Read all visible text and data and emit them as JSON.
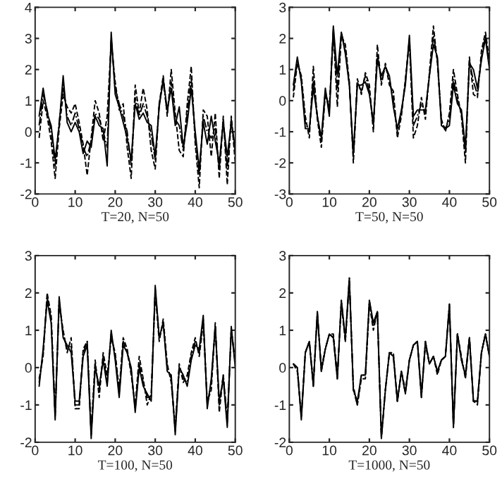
{
  "chart_data": [
    {
      "type": "line",
      "xlabel": "T=20, N=50",
      "x": [
        1,
        2,
        3,
        4,
        5,
        6,
        7,
        8,
        9,
        10,
        11,
        12,
        13,
        14,
        15,
        16,
        17,
        18,
        19,
        20,
        21,
        22,
        23,
        24,
        25,
        26,
        27,
        28,
        29,
        30,
        31,
        32,
        33,
        34,
        35,
        36,
        37,
        38,
        39,
        40,
        41,
        42,
        43,
        44,
        45,
        46,
        47,
        48,
        49,
        50
      ],
      "xlim": [
        0,
        50
      ],
      "xticks": [
        0,
        10,
        20,
        30,
        40,
        50
      ],
      "ylim": [
        -2,
        4
      ],
      "yticks": [
        -2,
        -1,
        0,
        1,
        2,
        3,
        4
      ],
      "series": [
        {
          "color": "#000000",
          "line_style": "solid",
          "values": [
            0.5,
            1.4,
            0.6,
            0.2,
            -0.9,
            0.2,
            1.8,
            0.3,
            0,
            0.3,
            0,
            -0.7,
            -0.3,
            -0.5,
            0.5,
            0.2,
            0.1,
            -1.1,
            3.2,
            1.2,
            0.8,
            0.3,
            -0.2,
            -0.9,
            0.9,
            0.4,
            0.6,
            0.3,
            0.2,
            -0.8,
            0.8,
            1.7,
            0.7,
            1.4,
            0.2,
            0.8,
            -0.5,
            0.3,
            1.4,
            0,
            -1.2,
            0.3,
            -0.4,
            0.5,
            -0.3,
            -1,
            0.3,
            -0.8,
            0.3,
            -0.5
          ]
        },
        {
          "color": "#000000",
          "line_style": "dashdot",
          "values": [
            0.2,
            1.2,
            0.7,
            0,
            -1.1,
            0.3,
            1.5,
            0.5,
            0.2,
            0.6,
            0.1,
            -0.5,
            -0.8,
            -0.3,
            0.6,
            0.4,
            0,
            -0.5,
            3.0,
            1.4,
            0.9,
            0.5,
            0,
            -1.1,
            1.1,
            0.5,
            0.9,
            0.5,
            -0.1,
            -0.9,
            0.9,
            1.6,
            0.6,
            1.6,
            0.4,
            0.2,
            -0.6,
            0.6,
            1.7,
            -0.2,
            -1.4,
            0.5,
            0,
            -0.2,
            0.1,
            -1.2,
            0.4,
            -1.2,
            0.4,
            -0.7
          ]
        },
        {
          "color": "#000000",
          "line_style": "dashed",
          "values": [
            -0.2,
            1.0,
            0.5,
            -0.3,
            -1.5,
            0.1,
            1.2,
            0.8,
            0.6,
            0.9,
            0.3,
            -0.4,
            -1.4,
            -0.2,
            1.0,
            0.6,
            -0.3,
            0.5,
            2.9,
            1.6,
            0.7,
            0.9,
            -0.5,
            -1.5,
            1.5,
            0.6,
            1.4,
            0.7,
            -0.6,
            -1.2,
            0.9,
            1.8,
            0.5,
            2.0,
            0.6,
            -0.6,
            -0.8,
            0.9,
            2.1,
            -0.4,
            -1.8,
            0.7,
            0.5,
            -0.8,
            0.6,
            -1.5,
            0.5,
            -1.7,
            0.5,
            -1.0
          ]
        }
      ]
    },
    {
      "type": "line",
      "xlabel": "T=50, N=50",
      "x": [
        1,
        2,
        3,
        4,
        5,
        6,
        7,
        8,
        9,
        10,
        11,
        12,
        13,
        14,
        15,
        16,
        17,
        18,
        19,
        20,
        21,
        22,
        23,
        24,
        25,
        26,
        27,
        28,
        29,
        30,
        31,
        32,
        33,
        34,
        35,
        36,
        37,
        38,
        39,
        40,
        41,
        42,
        43,
        44,
        45,
        46,
        47,
        48,
        49,
        50
      ],
      "xlim": [
        0,
        50
      ],
      "xticks": [
        0,
        10,
        20,
        30,
        40,
        50
      ],
      "ylim": [
        -3,
        3
      ],
      "yticks": [
        -3,
        -2,
        -1,
        0,
        1,
        2,
        3
      ],
      "series": [
        {
          "color": "#000000",
          "line_style": "solid",
          "values": [
            0.5,
            1.4,
            0.6,
            -0.9,
            -0.9,
            0.4,
            -0.5,
            -1.2,
            0.4,
            -0.5,
            2.4,
            0.8,
            2.2,
            1.5,
            0.5,
            -1.7,
            0.5,
            0.5,
            0.6,
            0.2,
            -0.7,
            1.3,
            0.8,
            1.1,
            0.8,
            -0.2,
            -0.9,
            -0.3,
            0.5,
            2.1,
            -0.5,
            -0.3,
            -0.3,
            -0.3,
            0.8,
            1.8,
            1.4,
            -0.8,
            -0.9,
            -0.8,
            0.5,
            -0.1,
            -0.3,
            -1.5,
            1.2,
            1.0,
            0.4,
            1.3,
            2.0,
            1.0
          ]
        },
        {
          "color": "#000000",
          "line_style": "dashdot",
          "values": [
            0.3,
            1.3,
            0.7,
            -0.7,
            -1.0,
            0.7,
            -0.5,
            -1.3,
            0.3,
            -0.3,
            2.3,
            0.3,
            2.2,
            1.6,
            0.5,
            -1.8,
            0.6,
            0.3,
            0.8,
            0.3,
            -0.8,
            1.5,
            0.6,
            1.1,
            0.7,
            0,
            -1.0,
            -0.4,
            0.6,
            2.0,
            -0.8,
            -0.5,
            -0.1,
            -0.4,
            0.8,
            2.1,
            1.3,
            -0.7,
            -0.9,
            -0.6,
            0.7,
            0,
            -0.4,
            -1.7,
            1.3,
            0.6,
            0.2,
            1.4,
            2.1,
            1.1
          ]
        },
        {
          "color": "#000000",
          "line_style": "dashed",
          "values": [
            0.1,
            1.2,
            0.8,
            -0.5,
            -1.2,
            1.1,
            -0.6,
            -1.5,
            0.2,
            -0.2,
            2.2,
            -0.2,
            2.1,
            1.8,
            0.6,
            -2.0,
            0.7,
            0.2,
            0.9,
            0.5,
            -1.0,
            1.8,
            0.5,
            1.2,
            0.5,
            0.3,
            -1.2,
            -0.5,
            0.7,
            1.9,
            -1.2,
            -0.8,
            0.1,
            -0.6,
            0.9,
            2.4,
            1.2,
            -0.6,
            -1.0,
            -0.4,
            1.0,
            0.2,
            -0.5,
            -2.0,
            1.4,
            0.2,
            0.1,
            1.6,
            2.2,
            1.3
          ]
        }
      ]
    },
    {
      "type": "line",
      "xlabel": "T=100, N=50",
      "x": [
        1,
        2,
        3,
        4,
        5,
        6,
        7,
        8,
        9,
        10,
        11,
        12,
        13,
        14,
        15,
        16,
        17,
        18,
        19,
        20,
        21,
        22,
        23,
        24,
        25,
        26,
        27,
        28,
        29,
        30,
        31,
        32,
        33,
        34,
        35,
        36,
        37,
        38,
        39,
        40,
        41,
        42,
        43,
        44,
        45,
        46,
        47,
        48,
        49,
        50
      ],
      "xlim": [
        0,
        50
      ],
      "xticks": [
        0,
        10,
        20,
        30,
        40,
        50
      ],
      "ylim": [
        -2,
        3
      ],
      "yticks": [
        -2,
        -1,
        0,
        1,
        2,
        3
      ],
      "series": [
        {
          "color": "#000000",
          "line_style": "solid",
          "values": [
            -0.5,
            0.5,
            1.8,
            1.2,
            -1.4,
            1.9,
            0.8,
            0.6,
            0.4,
            -0.9,
            -0.9,
            0.3,
            0.6,
            -1.9,
            0,
            -0.5,
            0.2,
            -0.5,
            1.0,
            0.2,
            -0.8,
            0.6,
            0.4,
            0,
            -1.2,
            0,
            -0.5,
            -0.7,
            -0.9,
            2.2,
            0.8,
            1.2,
            -0.1,
            -0.2,
            -1.8,
            0,
            -0.2,
            -0.5,
            0.2,
            0.6,
            0.5,
            1.4,
            -1.1,
            -0.3,
            1.1,
            -0.9,
            -0.3,
            -1.6,
            1.1,
            0
          ]
        },
        {
          "color": "#000000",
          "line_style": "dashdot",
          "values": [
            -0.4,
            0.4,
            1.9,
            1.3,
            -1.3,
            1.8,
            0.9,
            0.5,
            0.6,
            -1.0,
            -1.0,
            0.4,
            0.7,
            -1.8,
            0.1,
            -0.6,
            0.3,
            -0.4,
            0.9,
            0.3,
            -0.7,
            0.7,
            0.4,
            -0.1,
            -1.1,
            0.1,
            -0.4,
            -0.8,
            -0.8,
            2.1,
            0.8,
            1.2,
            0,
            -0.3,
            -1.7,
            0,
            -0.3,
            -0.4,
            0.3,
            0.7,
            0.4,
            1.3,
            -1.0,
            -0.4,
            1.1,
            -1.0,
            -0.2,
            -1.5,
            1.0,
            0.1
          ]
        },
        {
          "color": "#000000",
          "line_style": "dashed",
          "values": [
            -0.3,
            0.3,
            2.0,
            1.4,
            -1.2,
            1.7,
            1.0,
            0.4,
            0.8,
            -1.1,
            -1.1,
            0.5,
            0.7,
            -1.7,
            0.2,
            -0.8,
            0.4,
            -0.2,
            0.8,
            0.4,
            -0.6,
            0.8,
            0.5,
            -0.2,
            -1.0,
            0.3,
            -0.3,
            -1.0,
            -0.7,
            2.0,
            0.7,
            1.3,
            0.1,
            -0.4,
            -1.6,
            0.1,
            -0.4,
            -0.2,
            0.4,
            0.8,
            0.3,
            1.2,
            -0.9,
            -0.6,
            1.2,
            -1.2,
            -0.2,
            -1.4,
            1.0,
            0.2
          ]
        }
      ]
    },
    {
      "type": "line",
      "xlabel": "T=1000, N=50",
      "x": [
        1,
        2,
        3,
        4,
        5,
        6,
        7,
        8,
        9,
        10,
        11,
        12,
        13,
        14,
        15,
        16,
        17,
        18,
        19,
        20,
        21,
        22,
        23,
        24,
        25,
        26,
        27,
        28,
        29,
        30,
        31,
        32,
        33,
        34,
        35,
        36,
        37,
        38,
        39,
        40,
        41,
        42,
        43,
        44,
        45,
        46,
        47,
        48,
        49,
        50
      ],
      "xlim": [
        0,
        50
      ],
      "xticks": [
        0,
        10,
        20,
        30,
        40,
        50
      ],
      "ylim": [
        -2,
        3
      ],
      "yticks": [
        -2,
        -1,
        0,
        1,
        2,
        3
      ],
      "series": [
        {
          "color": "#000000",
          "line_style": "solid",
          "values": [
            0.1,
            0,
            -1.4,
            0.4,
            0.7,
            -0.5,
            1.5,
            -0.1,
            0.5,
            0.9,
            0.8,
            -0.3,
            1.8,
            0.8,
            2.4,
            -0.6,
            -0.9,
            -0.2,
            -0.2,
            1.8,
            1.2,
            1.5,
            -1.9,
            -0.6,
            0.4,
            0.3,
            -0.9,
            -0.1,
            -0.7,
            0.2,
            0.6,
            0.7,
            -0.8,
            0.7,
            0.1,
            0.3,
            -0.1,
            0.2,
            0.3,
            1.7,
            -1.6,
            0.9,
            0.2,
            -0.2,
            0.8,
            -0.9,
            -0.9,
            0.4,
            0.9,
            0.3
          ]
        },
        {
          "color": "#000000",
          "line_style": "dashdot",
          "values": [
            0.1,
            0,
            -1.3,
            0.4,
            0.7,
            -0.5,
            1.5,
            -0.1,
            0.5,
            0.9,
            0.8,
            -0.3,
            1.8,
            0.7,
            2.4,
            -0.6,
            -1.0,
            -0.2,
            -0.2,
            1.8,
            1.1,
            1.5,
            -1.9,
            -0.6,
            0.4,
            0.3,
            -0.9,
            -0.1,
            -0.7,
            0.2,
            0.6,
            0.7,
            -0.8,
            0.7,
            0.1,
            0.3,
            -0.1,
            0.2,
            0.3,
            1.7,
            -1.6,
            0.9,
            0.2,
            -0.2,
            0.8,
            -0.9,
            -0.9,
            0.4,
            0.9,
            0.3
          ]
        },
        {
          "color": "#000000",
          "line_style": "dashed",
          "values": [
            0.1,
            -0.1,
            -1.3,
            0.4,
            0.7,
            -0.4,
            1.4,
            0,
            0.5,
            0.9,
            0.9,
            -0.2,
            1.7,
            0.7,
            2.3,
            -0.5,
            -1.0,
            -0.3,
            -0.3,
            1.7,
            1.0,
            1.5,
            -1.8,
            -0.6,
            0.4,
            0.4,
            -0.9,
            -0.1,
            -0.6,
            0.2,
            0.6,
            0.7,
            -0.7,
            0.6,
            0.1,
            0.3,
            -0.2,
            0.2,
            0.3,
            1.6,
            -1.5,
            0.9,
            0.3,
            -0.3,
            0.8,
            -0.9,
            -1.0,
            0.4,
            0.9,
            0.3
          ]
        }
      ]
    }
  ]
}
